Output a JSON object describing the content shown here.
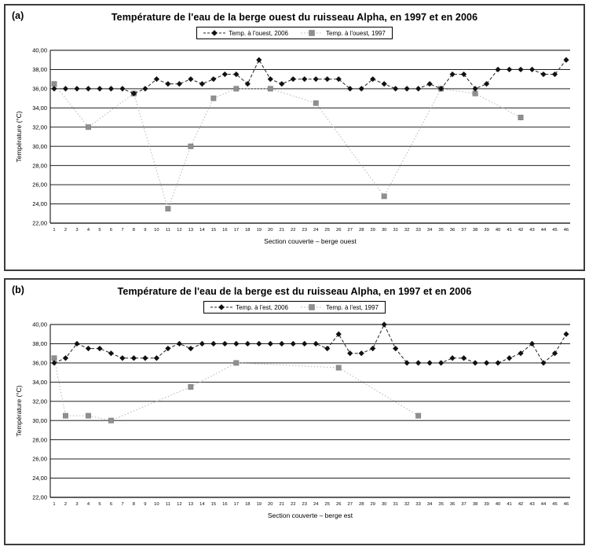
{
  "chart_data": [
    {
      "type": "line",
      "panel_label": "(a)",
      "title": "Température de l'eau de la berge ouest du ruisseau Alpha, en 1997 et en 2006",
      "xlabel": "Section couverte – berge ouest",
      "ylabel": "Température (°C)",
      "ylim": [
        22,
        40
      ],
      "ytick_step": 2,
      "ytick_labels": [
        "22,00",
        "24,00",
        "26,00",
        "28,00",
        "30,00",
        "32,00",
        "34,00",
        "36,00",
        "38,00",
        "40,00"
      ],
      "grid": "horizontal-solid",
      "legend_position": "top-center",
      "x_categories": [
        1,
        2,
        3,
        4,
        5,
        6,
        7,
        8,
        9,
        10,
        11,
        12,
        13,
        14,
        15,
        16,
        17,
        18,
        19,
        20,
        21,
        22,
        23,
        24,
        25,
        26,
        27,
        28,
        29,
        30,
        31,
        32,
        33,
        34,
        35,
        36,
        37,
        38,
        39,
        40,
        41,
        42,
        43,
        44,
        45,
        46
      ],
      "series": [
        {
          "name": "Temp. à l'ouest, 2006",
          "marker": "diamond",
          "marker_color": "#111111",
          "line_style": "dashed",
          "line_color": "#222222",
          "values": [
            36,
            36,
            36,
            36,
            36,
            36,
            36,
            35.5,
            36,
            37,
            36.5,
            36.5,
            37,
            36.5,
            37,
            37.5,
            37.5,
            36.5,
            39,
            37,
            36.5,
            37,
            37,
            37,
            37,
            37,
            36,
            36,
            37,
            36.5,
            36,
            36,
            36,
            36.5,
            36,
            37.5,
            37.5,
            36,
            36.5,
            38,
            38,
            38,
            38,
            37.5,
            37.5,
            39
          ]
        },
        {
          "name": "Temp. à l'ouest, 1997",
          "marker": "square",
          "marker_color": "#8f8f8f",
          "line_style": "dotted",
          "line_color": "#b5b5b5",
          "points": [
            [
              1,
              36.5
            ],
            [
              4,
              32
            ],
            [
              8,
              35.5
            ],
            [
              11,
              23.5
            ],
            [
              13,
              30
            ],
            [
              15,
              35
            ],
            [
              17,
              36
            ],
            [
              20,
              36
            ],
            [
              24,
              34.5
            ],
            [
              30,
              24.8
            ],
            [
              35,
              36
            ],
            [
              38,
              35.5
            ],
            [
              42,
              33
            ]
          ]
        }
      ]
    },
    {
      "type": "line",
      "panel_label": "(b)",
      "title": "Température de l'eau de la berge est du ruisseau Alpha, en 1997 et en 2006",
      "xlabel": "Section couverte – berge est",
      "ylabel": "Température (°C)",
      "ylim": [
        22,
        40
      ],
      "ytick_step": 2,
      "ytick_labels": [
        "22,00",
        "24,00",
        "26,00",
        "28,00",
        "30,00",
        "32,00",
        "34,00",
        "36,00",
        "38,00",
        "40,00"
      ],
      "grid": "horizontal-solid",
      "legend_position": "top-center",
      "x_categories": [
        1,
        2,
        3,
        4,
        5,
        6,
        7,
        8,
        9,
        10,
        11,
        12,
        13,
        14,
        15,
        16,
        17,
        18,
        19,
        20,
        21,
        22,
        23,
        24,
        25,
        26,
        27,
        28,
        29,
        30,
        31,
        32,
        33,
        34,
        35,
        36,
        37,
        38,
        39,
        40,
        41,
        42,
        43,
        44,
        45,
        46
      ],
      "series": [
        {
          "name": "Temp. à l'est, 2006",
          "marker": "diamond",
          "marker_color": "#111111",
          "line_style": "dashed",
          "line_color": "#222222",
          "values": [
            36,
            36.5,
            38,
            37.5,
            37.5,
            37,
            36.5,
            36.5,
            36.5,
            36.5,
            37.5,
            38,
            37.5,
            38,
            38,
            38,
            38,
            38,
            38,
            38,
            38,
            38,
            38,
            38,
            37.5,
            39,
            37,
            37,
            37.5,
            40,
            37.5,
            36,
            36,
            36,
            36,
            36.5,
            36.5,
            36,
            36,
            36,
            36.5,
            37,
            38,
            36,
            37,
            39
          ]
        },
        {
          "name": "Temp. à l'est, 1997",
          "marker": "square",
          "marker_color": "#8f8f8f",
          "line_style": "dotted",
          "line_color": "#b5b5b5",
          "points": [
            [
              1,
              36.5
            ],
            [
              2,
              30.5
            ],
            [
              4,
              30.5
            ],
            [
              6,
              30
            ],
            [
              13,
              33.5
            ],
            [
              17,
              36
            ],
            [
              26,
              35.5
            ],
            [
              33,
              30.5
            ]
          ]
        }
      ]
    }
  ]
}
